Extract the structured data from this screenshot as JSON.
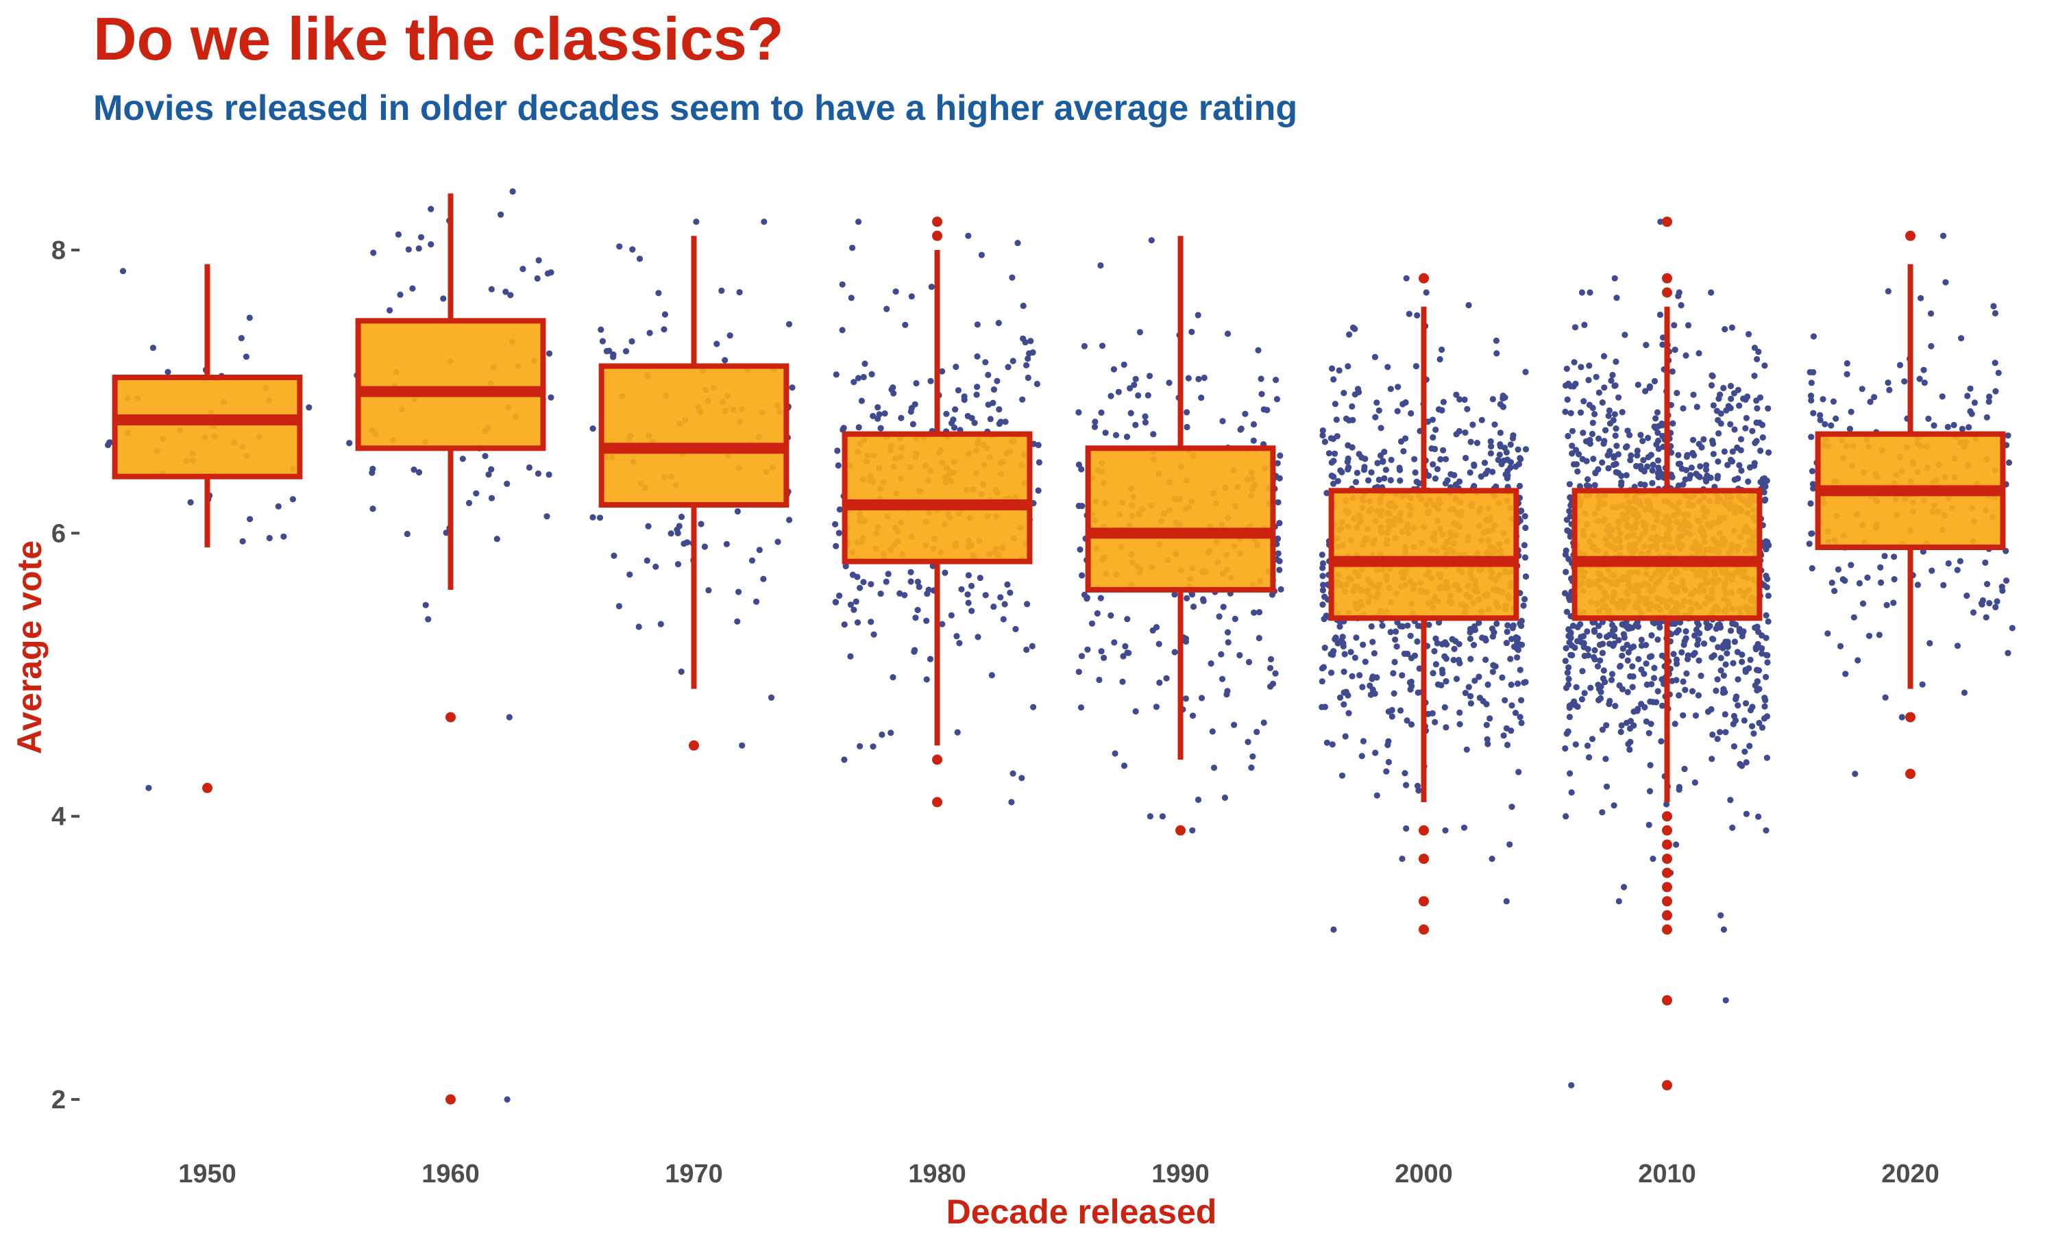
{
  "title": "Do we like the classics?",
  "subtitle": "Movies released in older decades seem to have a higher average rating",
  "colors": {
    "title": "#cc2310",
    "subtitle": "#1b5c9e",
    "box_fill": "#fbaa19",
    "box_stroke": "#cc2310",
    "points": "#3f4a8f",
    "outliers": "#cc2310",
    "tick_text": "#4d4d4d"
  },
  "chart_data": {
    "type": "boxplot",
    "xlabel": "Decade released",
    "ylabel": "Average vote",
    "ylim": [
      1.75,
      8.6
    ],
    "yticks": [
      2,
      4,
      6,
      8
    ],
    "grid": false,
    "legend": "none",
    "categories": [
      "1950",
      "1960",
      "1970",
      "1980",
      "1990",
      "2000",
      "2010",
      "2020"
    ],
    "boxes": [
      {
        "decade": "1950",
        "lower_whisker": 5.9,
        "q1": 6.4,
        "median": 6.8,
        "q3": 7.1,
        "upper_whisker": 7.9,
        "outliers": [
          4.2
        ],
        "approx_points": 45
      },
      {
        "decade": "1960",
        "lower_whisker": 5.6,
        "q1": 6.6,
        "median": 7.0,
        "q3": 7.5,
        "upper_whisker": 8.4,
        "outliers": [
          4.7,
          2.0
        ],
        "approx_points": 70
      },
      {
        "decade": "1970",
        "lower_whisker": 4.9,
        "q1": 6.2,
        "median": 6.6,
        "q3": 7.18,
        "upper_whisker": 8.1,
        "outliers": [
          4.5
        ],
        "approx_points": 110
      },
      {
        "decade": "1980",
        "lower_whisker": 4.5,
        "q1": 5.8,
        "median": 6.2,
        "q3": 6.7,
        "upper_whisker": 8.0,
        "outliers": [
          8.2,
          8.1,
          4.4,
          4.1
        ],
        "approx_points": 320
      },
      {
        "decade": "1990",
        "lower_whisker": 4.4,
        "q1": 5.6,
        "median": 6.0,
        "q3": 6.6,
        "upper_whisker": 8.1,
        "outliers": [
          3.9
        ],
        "approx_points": 280
      },
      {
        "decade": "2000",
        "lower_whisker": 4.1,
        "q1": 5.4,
        "median": 5.8,
        "q3": 6.3,
        "upper_whisker": 7.6,
        "outliers": [
          7.8,
          3.9,
          3.7,
          3.4,
          3.2
        ],
        "approx_points": 800
      },
      {
        "decade": "2010",
        "lower_whisker": 4.1,
        "q1": 5.4,
        "median": 5.8,
        "q3": 6.3,
        "upper_whisker": 7.6,
        "outliers": [
          8.2,
          7.8,
          7.7,
          4.0,
          3.9,
          3.8,
          3.7,
          3.6,
          3.5,
          3.4,
          3.3,
          3.2,
          2.7,
          2.1
        ],
        "approx_points": 1300
      },
      {
        "decade": "2020",
        "lower_whisker": 4.9,
        "q1": 5.9,
        "median": 6.3,
        "q3": 6.7,
        "upper_whisker": 7.9,
        "outliers": [
          8.1,
          4.7,
          4.3
        ],
        "approx_points": 220
      }
    ]
  }
}
